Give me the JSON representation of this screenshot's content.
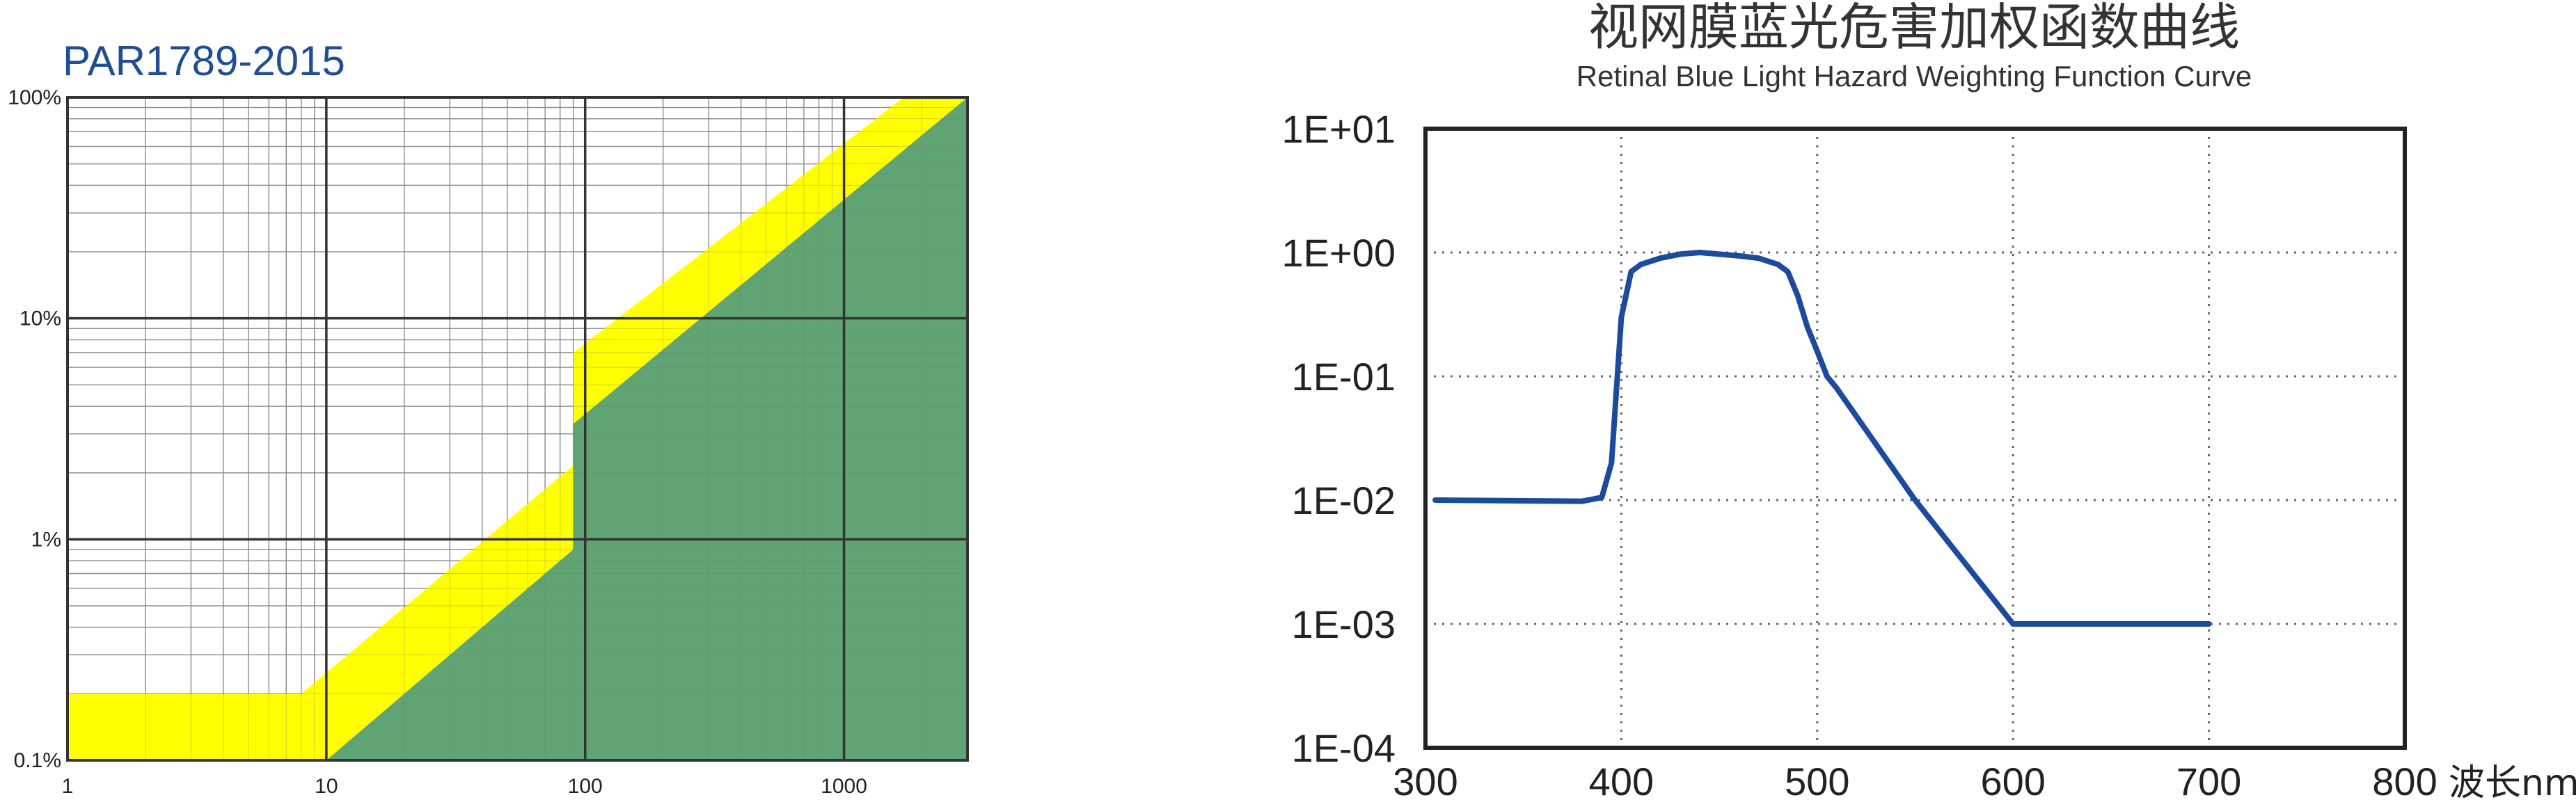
{
  "left_chart": {
    "title": "PAR1789-2015",
    "chart_data": {
      "type": "area",
      "scale": "log-log",
      "x_ticks": [
        "1",
        "10",
        "100",
        "1000"
      ],
      "y_ticks": [
        "0.1%",
        "1%",
        "10%",
        "100%"
      ],
      "xlim": [
        1,
        3000
      ],
      "ylim": [
        0.1,
        100
      ],
      "grid": true,
      "series": [
        {
          "color": "#ffff00",
          "points": [
            [
              1,
              0.2
            ],
            [
              8,
              0.2
            ],
            [
              90,
              2.16
            ],
            [
              90,
              7
            ],
            [
              1700,
              100
            ],
            [
              3000,
              100
            ],
            [
              90,
              3.33
            ],
            [
              90,
              0.9
            ],
            [
              10,
              0.1
            ],
            [
              1,
              0.1
            ]
          ]
        },
        {
          "color": "#5fa472",
          "points": [
            [
              10,
              0.1
            ],
            [
              90,
              0.9
            ],
            [
              90,
              3.33
            ],
            [
              3000,
              100
            ],
            [
              3000,
              0.1
            ]
          ]
        }
      ]
    }
  },
  "right_chart": {
    "title": "视网膜蓝光危害加权函数曲线",
    "subtitle": "Retinal Blue Light Hazard Weighting Function Curve",
    "x_unit": "波长nm",
    "chart_data": {
      "type": "line",
      "title": "视网膜蓝光危害加权函数曲线",
      "subtitle": "Retinal Blue Light Hazard Weighting Function Curve",
      "xlabel": "波长nm",
      "x_ticks": [
        "300",
        "400",
        "500",
        "600",
        "700",
        "800"
      ],
      "y_ticks": [
        "1E+01",
        "1E+00",
        "1E-01",
        "1E-02",
        "1E-03",
        "1E-04"
      ],
      "xlim": [
        300,
        800
      ],
      "ylim": [
        0.0001,
        10
      ],
      "y_scale": "log",
      "grid": "dotted",
      "line_color": "#1c4a9c",
      "x": [
        305,
        380,
        390,
        395,
        400,
        405,
        410,
        420,
        430,
        440,
        450,
        460,
        470,
        480,
        485,
        490,
        495,
        500,
        505,
        510,
        550,
        600,
        605,
        700
      ],
      "y": [
        0.01,
        0.0098,
        0.0105,
        0.02,
        0.3,
        0.7,
        0.8,
        0.9,
        0.97,
        1.0,
        0.97,
        0.94,
        0.9,
        0.8,
        0.7,
        0.45,
        0.25,
        0.16,
        0.1,
        0.08,
        0.01,
        0.001,
        0.001,
        0.001
      ]
    }
  }
}
